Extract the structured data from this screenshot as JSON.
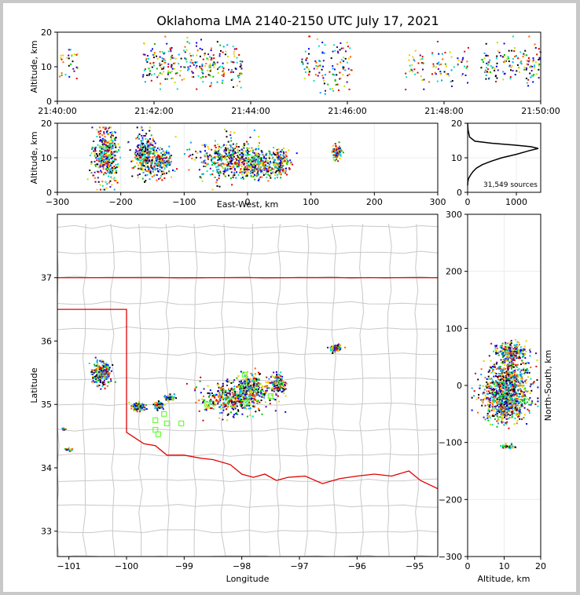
{
  "title": "Oklahoma LMA 2140-2150 UTC July 17, 2021",
  "colors": {
    "state_border": "#e00000",
    "county_lines": "#c8c8c8",
    "station_marker": "#66ff33",
    "histogram_line": "#000000",
    "source_palette": [
      "#5000a0",
      "#0000ff",
      "#00a0ff",
      "#00e0c0",
      "#00c000",
      "#c0e000",
      "#ffc000",
      "#ff6000",
      "#e00000",
      "#000000"
    ]
  },
  "chart_data": [
    {
      "id": "time-height",
      "type": "scatter",
      "xlabel": "",
      "ylabel": "Altitude, km",
      "xlim": [
        "21:40:00",
        "21:50:00"
      ],
      "ylim": [
        0,
        20
      ],
      "xticks": [
        "21:40:00",
        "21:42:00",
        "21:44:00",
        "21:46:00",
        "21:48:00",
        "21:50:00"
      ],
      "yticks": [
        "0",
        "10",
        "20"
      ],
      "clusters": [
        {
          "t_start": "21:41:45",
          "t_end": "21:43:50",
          "alt_center": 11,
          "alt_spread": 3,
          "density": 1.0
        },
        {
          "t_start": "21:40:00",
          "t_end": "21:40:25",
          "alt_center": 11,
          "alt_spread": 2,
          "density": 0.5
        },
        {
          "t_start": "21:45:00",
          "t_end": "21:46:05",
          "alt_center": 10,
          "alt_spread": 4,
          "density": 0.8
        },
        {
          "t_start": "21:47:10",
          "t_end": "21:48:30",
          "alt_center": 10,
          "alt_spread": 3,
          "density": 0.5
        },
        {
          "t_start": "21:48:45",
          "t_end": "21:50:00",
          "alt_center": 11,
          "alt_spread": 3,
          "density": 0.9
        }
      ]
    },
    {
      "id": "ew-height",
      "type": "scatter",
      "xlabel": "East-West, km",
      "ylabel": "Altitude, km",
      "xlim": [
        -300,
        300
      ],
      "ylim": [
        0,
        20
      ],
      "xticks": [
        "−300",
        "−200",
        "−100",
        "0",
        "100",
        "200",
        "300"
      ],
      "yticks": [
        "0",
        "10",
        "20"
      ],
      "clusters": [
        {
          "x_center": -225,
          "x_spread": 10,
          "alt_center": 11,
          "alt_spread": 4,
          "density": 0.9
        },
        {
          "x_center": -165,
          "x_spread": 8,
          "alt_center": 11,
          "alt_spread": 3,
          "density": 0.6
        },
        {
          "x_center": -140,
          "x_spread": 10,
          "alt_center": 9,
          "alt_spread": 2,
          "density": 0.5
        },
        {
          "x_center": -30,
          "x_spread": 25,
          "alt_center": 10,
          "alt_spread": 3,
          "density": 1.0
        },
        {
          "x_center": 15,
          "x_spread": 15,
          "alt_center": 8,
          "alt_spread": 2,
          "density": 0.6
        },
        {
          "x_center": 50,
          "x_spread": 7,
          "alt_center": 9,
          "alt_spread": 2,
          "density": 0.4
        },
        {
          "x_center": 140,
          "x_spread": 4,
          "alt_center": 12,
          "alt_spread": 1,
          "density": 0.2
        }
      ]
    },
    {
      "id": "altitude-histogram",
      "type": "line",
      "xlim": [
        0,
        1500
      ],
      "ylim": [
        0,
        20
      ],
      "xticks": [
        "0",
        "1000"
      ],
      "yticks": [
        "0",
        "10",
        "20"
      ],
      "annotation": "31,549 sources",
      "x": [
        0,
        5,
        20,
        60,
        110,
        180,
        300,
        480,
        700,
        1000,
        1250,
        1450,
        1300,
        950,
        500,
        150,
        40,
        10,
        0
      ],
      "y": [
        2,
        3,
        4,
        5,
        6,
        7,
        8,
        9,
        10,
        11,
        12,
        12.7,
        13.2,
        13.7,
        14.2,
        14.8,
        16,
        18,
        20
      ]
    },
    {
      "id": "plan-view",
      "type": "scatter",
      "xlabel": "Longitude",
      "ylabel": "Latitude",
      "xlim": [
        -101.2,
        -94.6
      ],
      "ylim": [
        32.6,
        38.0
      ],
      "xticks": [
        "−101",
        "−100",
        "−99",
        "−98",
        "−97",
        "−96",
        "−95"
      ],
      "yticks": [
        "33",
        "34",
        "35",
        "36",
        "37"
      ],
      "clusters": [
        {
          "lon": -98.15,
          "lat": 35.1,
          "dlon": 0.28,
          "dlat": 0.12,
          "density": 1.0
        },
        {
          "lon": -97.85,
          "lat": 35.3,
          "dlon": 0.15,
          "dlat": 0.1,
          "density": 0.5
        },
        {
          "lon": -97.4,
          "lat": 35.35,
          "dlon": 0.08,
          "dlat": 0.07,
          "density": 0.3
        },
        {
          "lon": -100.45,
          "lat": 35.5,
          "dlon": 0.08,
          "dlat": 0.1,
          "density": 0.5
        },
        {
          "lon": -99.8,
          "lat": 34.98,
          "dlon": 0.05,
          "dlat": 0.03,
          "density": 0.3
        },
        {
          "lon": -99.45,
          "lat": 35.0,
          "dlon": 0.04,
          "dlat": 0.03,
          "density": 0.2
        },
        {
          "lon": -99.25,
          "lat": 35.12,
          "dlon": 0.04,
          "dlat": 0.02,
          "density": 0.15
        },
        {
          "lon": -96.4,
          "lat": 35.9,
          "dlon": 0.05,
          "dlat": 0.03,
          "density": 0.15
        },
        {
          "lon": -101.0,
          "lat": 34.3,
          "dlon": 0.03,
          "dlat": 0.01,
          "density": 0.05
        },
        {
          "lon": -101.1,
          "lat": 34.62,
          "dlon": 0.02,
          "dlat": 0.01,
          "density": 0.03
        }
      ],
      "stations": [
        [
          -97.95,
          35.47
        ],
        [
          -97.93,
          35.03
        ],
        [
          -97.5,
          35.13
        ],
        [
          -97.95,
          35.27
        ],
        [
          -99.35,
          34.85
        ],
        [
          -99.5,
          34.75
        ],
        [
          -99.3,
          34.7
        ],
        [
          -99.05,
          34.7
        ],
        [
          -99.5,
          34.6
        ],
        [
          -99.45,
          34.53
        ],
        [
          -98.6,
          35.0
        ]
      ]
    },
    {
      "id": "ns-height",
      "type": "scatter",
      "xlabel": "Altitude, km",
      "ylabel": "North-South, km",
      "xlim": [
        0,
        20
      ],
      "ylim": [
        -300,
        300
      ],
      "xticks": [
        "0",
        "10",
        "20"
      ],
      "yticks": [
        "−300",
        "−200",
        "−100",
        "0",
        "100",
        "200",
        "300"
      ],
      "clusters": [
        {
          "alt_center": 10,
          "alt_spread": 3,
          "y_center": -25,
          "y_spread": 18,
          "density": 1.0
        },
        {
          "alt_center": 11,
          "alt_spread": 3,
          "y_center": 15,
          "y_spread": 20,
          "density": 0.7
        },
        {
          "alt_center": 12,
          "alt_spread": 2,
          "y_center": 60,
          "y_spread": 8,
          "density": 0.3
        },
        {
          "alt_center": 11,
          "alt_spread": 1,
          "y_center": -105,
          "y_spread": 2,
          "density": 0.05
        }
      ]
    }
  ]
}
